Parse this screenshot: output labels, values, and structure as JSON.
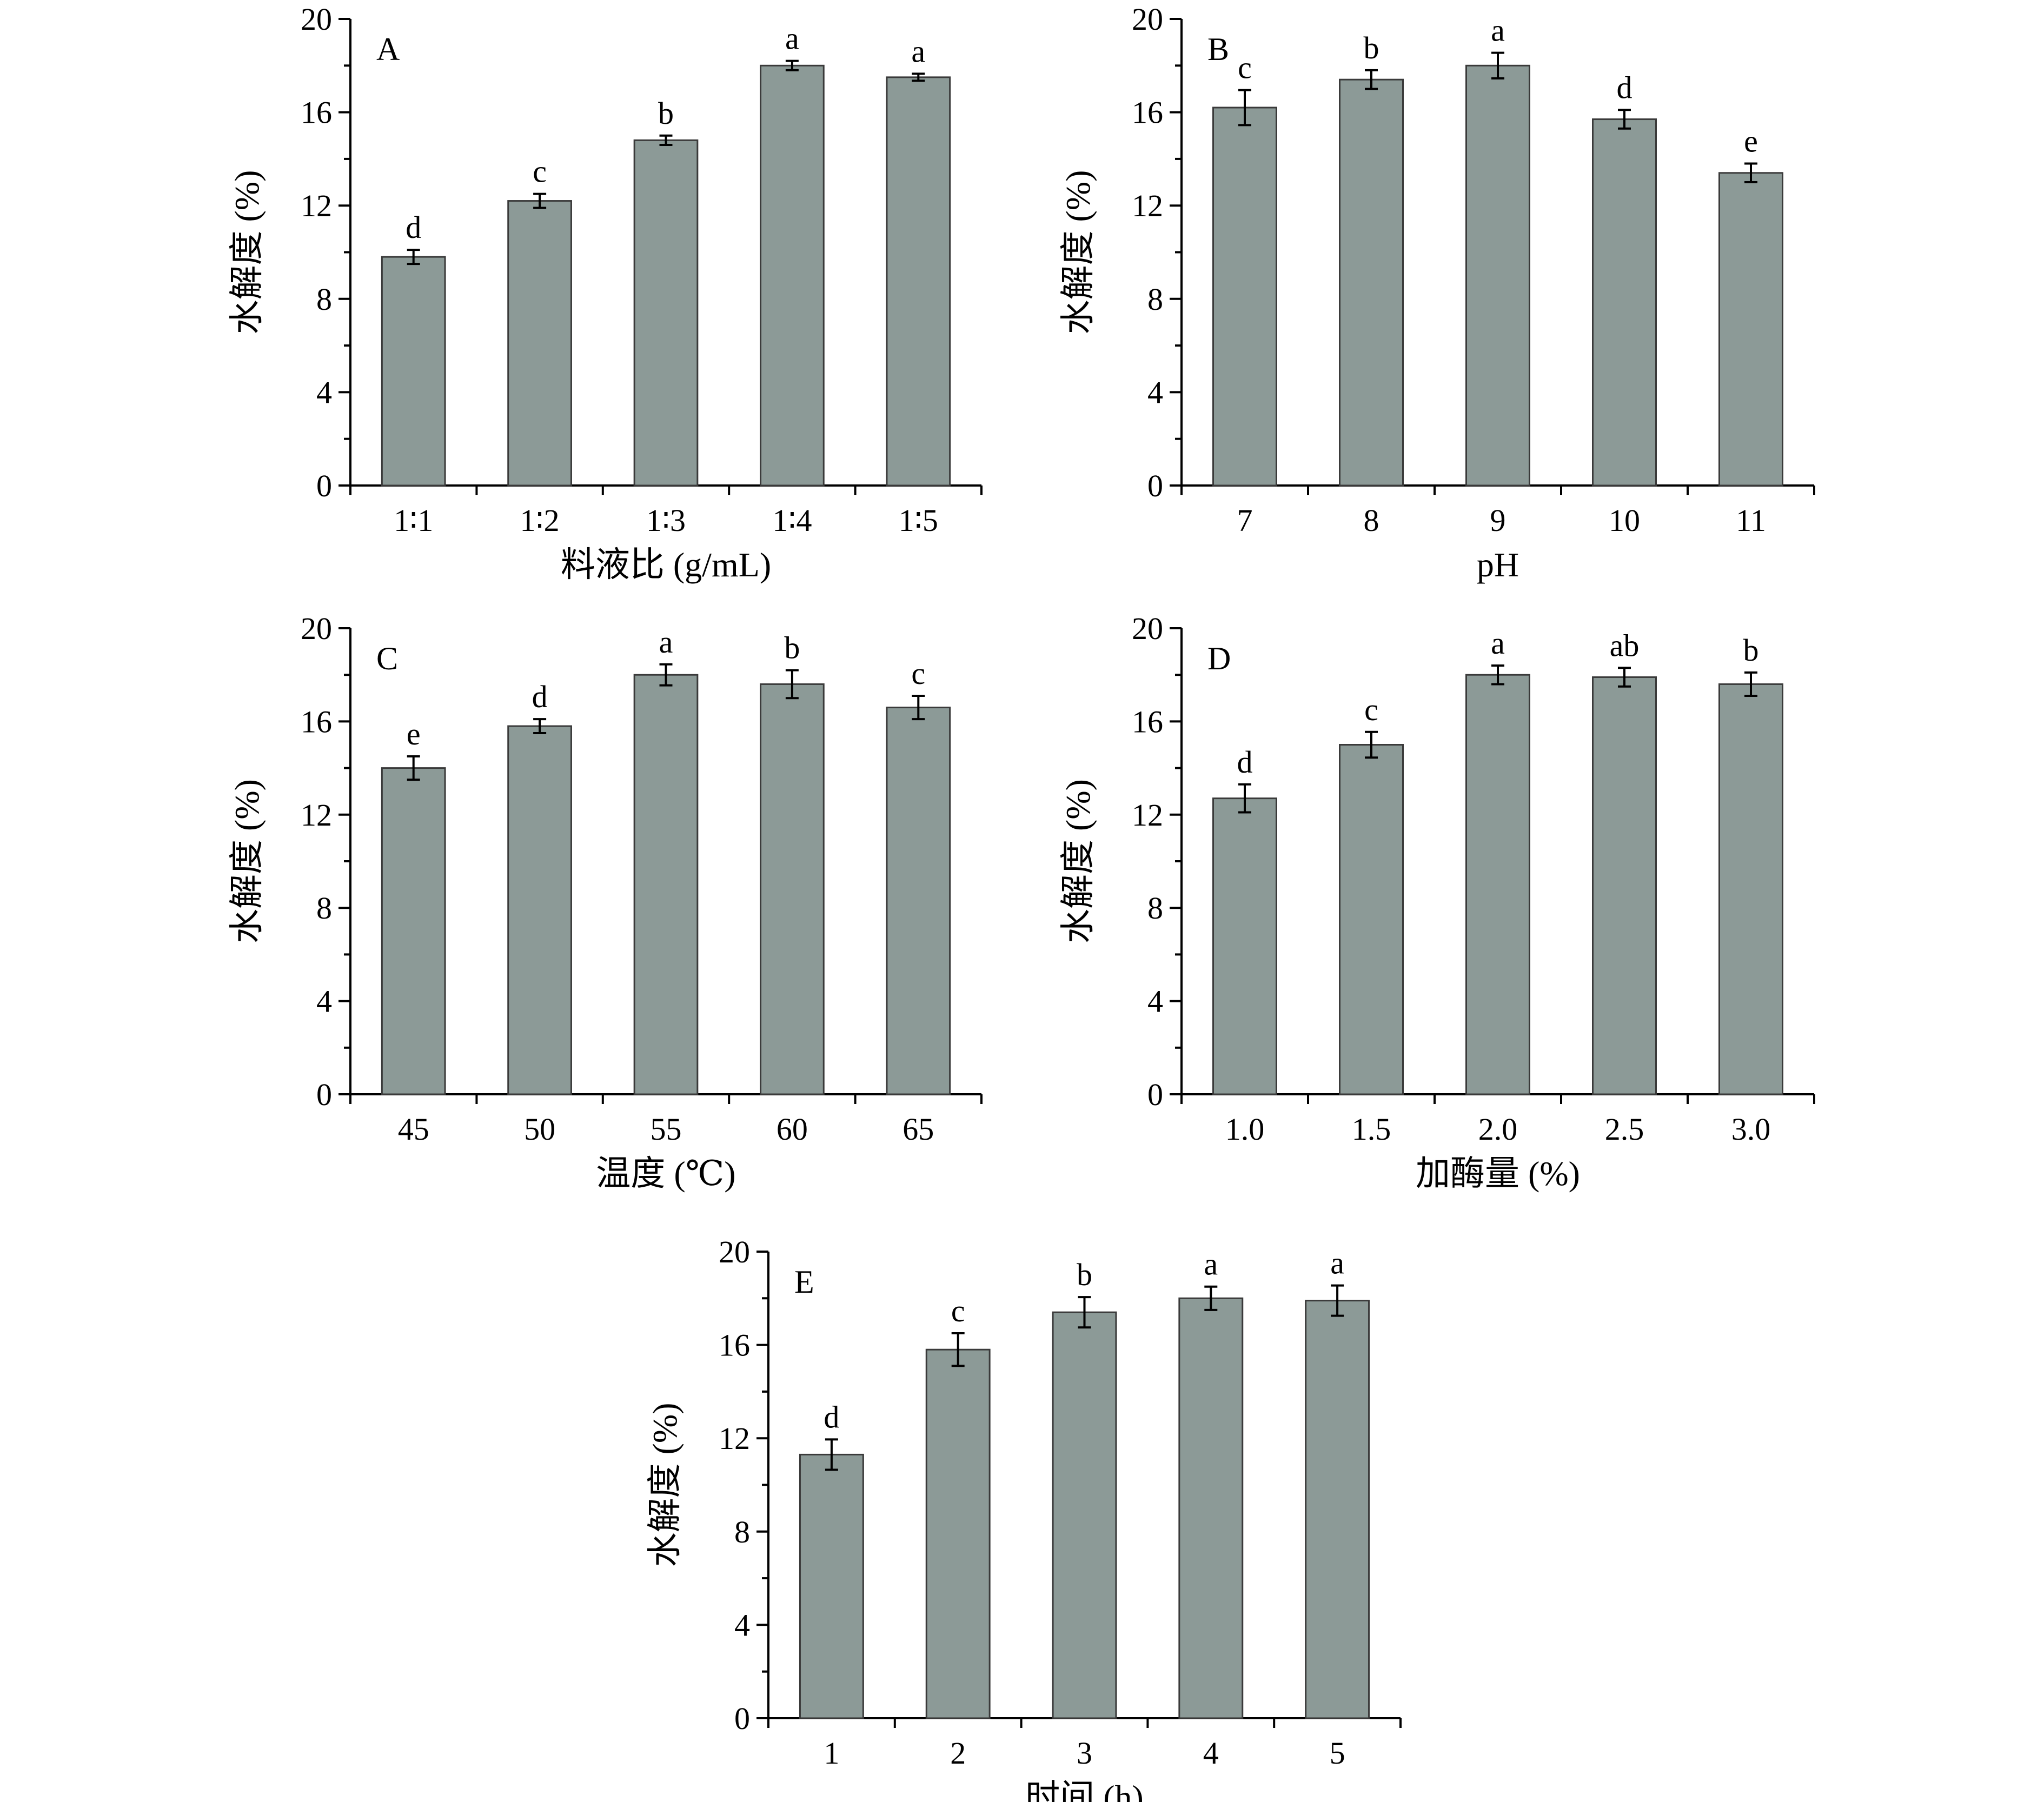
{
  "figure": {
    "panel_count": 5
  },
  "chart_data": [
    {
      "type": "bar",
      "panel_label": "A",
      "categories": [
        "1∶1",
        "1∶2",
        "1∶3",
        "1∶4",
        "1∶5"
      ],
      "values": [
        9.8,
        12.2,
        14.8,
        18.0,
        17.5
      ],
      "errors": [
        0.3,
        0.3,
        0.2,
        0.2,
        0.15
      ],
      "significance": [
        "d",
        "c",
        "b",
        "a",
        "a"
      ],
      "xlabel": "料液比 (g/mL)",
      "ylabel": "水解度 (%)",
      "ylim": [
        0,
        20
      ],
      "yticks": [
        0,
        4,
        8,
        12,
        16,
        20
      ],
      "colors": {
        "bar": "#8c9a97",
        "bar_edge": "#3a3a3a"
      }
    },
    {
      "type": "bar",
      "panel_label": "B",
      "categories": [
        "7",
        "8",
        "9",
        "10",
        "11"
      ],
      "values": [
        16.2,
        17.4,
        18.0,
        15.7,
        13.4
      ],
      "errors": [
        0.75,
        0.4,
        0.55,
        0.4,
        0.4
      ],
      "significance": [
        "c",
        "b",
        "a",
        "d",
        "e"
      ],
      "xlabel": "pH",
      "ylabel": "水解度 (%)",
      "ylim": [
        0,
        20
      ],
      "yticks": [
        0,
        4,
        8,
        12,
        16,
        20
      ],
      "colors": {
        "bar": "#8c9a97",
        "bar_edge": "#3a3a3a"
      }
    },
    {
      "type": "bar",
      "panel_label": "C",
      "categories": [
        "45",
        "50",
        "55",
        "60",
        "65"
      ],
      "values": [
        14.0,
        15.8,
        18.0,
        17.6,
        16.6
      ],
      "errors": [
        0.5,
        0.3,
        0.45,
        0.6,
        0.5
      ],
      "significance": [
        "e",
        "d",
        "a",
        "b",
        "c"
      ],
      "xlabel": "温度 (℃)",
      "ylabel": "水解度 (%)",
      "ylim": [
        0,
        20
      ],
      "yticks": [
        0,
        4,
        8,
        12,
        16,
        20
      ],
      "colors": {
        "bar": "#8c9a97",
        "bar_edge": "#3a3a3a"
      }
    },
    {
      "type": "bar",
      "panel_label": "D",
      "categories": [
        "1.0",
        "1.5",
        "2.0",
        "2.5",
        "3.0"
      ],
      "values": [
        12.7,
        15.0,
        18.0,
        17.9,
        17.6
      ],
      "errors": [
        0.6,
        0.55,
        0.4,
        0.4,
        0.5
      ],
      "significance": [
        "d",
        "c",
        "a",
        "ab",
        "b"
      ],
      "xlabel": "加酶量 (%)",
      "ylabel": "水解度 (%)",
      "ylim": [
        0,
        20
      ],
      "yticks": [
        0,
        4,
        8,
        12,
        16,
        20
      ],
      "colors": {
        "bar": "#8c9a97",
        "bar_edge": "#3a3a3a"
      }
    },
    {
      "type": "bar",
      "panel_label": "E",
      "categories": [
        "1",
        "2",
        "3",
        "4",
        "5"
      ],
      "values": [
        11.3,
        15.8,
        17.4,
        18.0,
        17.9
      ],
      "errors": [
        0.65,
        0.7,
        0.65,
        0.5,
        0.65
      ],
      "significance": [
        "d",
        "c",
        "b",
        "a",
        "a"
      ],
      "xlabel": "时间 (h)",
      "ylabel": "水解度 (%)",
      "ylim": [
        0,
        20
      ],
      "yticks": [
        0,
        4,
        8,
        12,
        16,
        20
      ],
      "colors": {
        "bar": "#8c9a97",
        "bar_edge": "#3a3a3a"
      }
    }
  ]
}
